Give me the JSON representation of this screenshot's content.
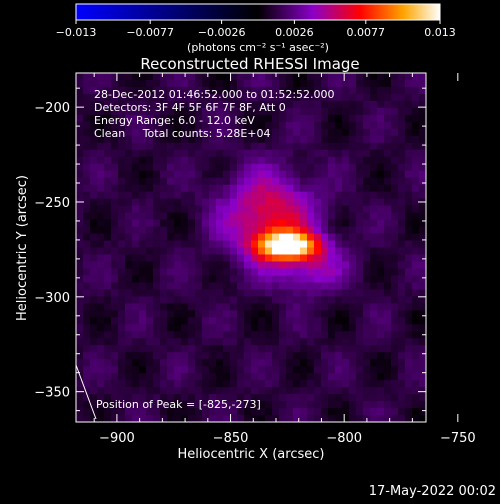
{
  "chart_data": {
    "type": "heatmap",
    "title": "Reconstructed RHESSI Image",
    "xlabel": "Heliocentric X (arcsec)",
    "ylabel": "Heliocentric Y (arcsec)",
    "xlim": [
      -918,
      -764
    ],
    "ylim": [
      -366,
      -182
    ],
    "x_ticks": [
      {
        "value": -900,
        "label": "−900"
      },
      {
        "value": -850,
        "label": "−850"
      },
      {
        "value": -800,
        "label": "−800"
      },
      {
        "value": -750,
        "label": "−750"
      }
    ],
    "y_ticks": [
      {
        "value": -200,
        "label": "−200"
      },
      {
        "value": -250,
        "label": "−250"
      },
      {
        "value": -300,
        "label": "−300"
      },
      {
        "value": -350,
        "label": "−350"
      }
    ],
    "colorbar": {
      "min": -0.013,
      "max": 0.013,
      "ticks": [
        {
          "value": -0.013,
          "label": "−0.013"
        },
        {
          "value": -0.0077,
          "label": "−0.0077"
        },
        {
          "value": -0.0026,
          "label": "−0.0026"
        },
        {
          "value": 0.0026,
          "label": "0.0026"
        },
        {
          "value": 0.0077,
          "label": "0.0077"
        },
        {
          "value": 0.013,
          "label": "0.013"
        }
      ],
      "units_label": "(photons cm⁻² s⁻¹ asec⁻²)",
      "colors": [
        "#0000ff",
        "#000000",
        "#8a00c8",
        "#ff0000",
        "#ffa500",
        "#ffffff"
      ]
    },
    "background_level": 0.0012,
    "peak": {
      "x": -825,
      "y": -273,
      "value": 0.013
    },
    "sources": [
      {
        "x": -825,
        "y": -273,
        "sx": 9,
        "sy": 5,
        "amp": 0.0115
      },
      {
        "x": -833,
        "y": -258,
        "sx": 14,
        "sy": 16,
        "amp": 0.0055
      },
      {
        "x": -815,
        "y": -285,
        "sx": 11,
        "sy": 9,
        "amp": 0.003
      }
    ],
    "annotations": [
      "28-Dec-2012 01:46:52.000 to 01:52:52.000",
      "Detectors: 3F 4F 5F 6F 7F 8F, Att 0",
      "Energy Range: 6.0 - 12.0 keV",
      "Clean     Total counts: 5.28E+04"
    ],
    "peak_label": "Position of Peak = [-825,-273]"
  },
  "footer_date": "17-May-2022 00:02"
}
